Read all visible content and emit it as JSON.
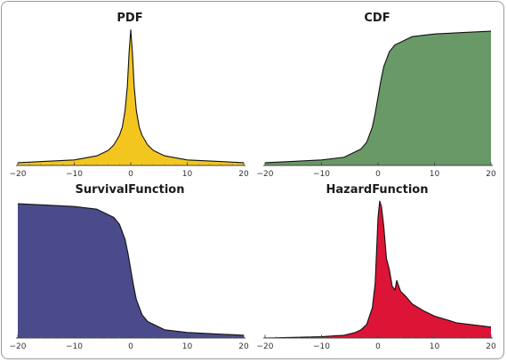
{
  "chart_data": [
    {
      "type": "area",
      "title": "PDF",
      "fill": "#f2c61f",
      "xlim": [
        -20,
        20
      ],
      "ylim": [
        0,
        1
      ],
      "xticks": [
        -20,
        -10,
        0,
        10,
        20
      ],
      "x": [
        -20,
        -10,
        -6,
        -4,
        -3,
        -2,
        -1.5,
        -1,
        -0.6,
        -0.3,
        0,
        0.3,
        0.6,
        1,
        1.5,
        2,
        3,
        4,
        6,
        10,
        20
      ],
      "y": [
        0.02,
        0.04,
        0.07,
        0.11,
        0.15,
        0.22,
        0.28,
        0.4,
        0.58,
        0.82,
        0.99,
        0.82,
        0.58,
        0.4,
        0.28,
        0.22,
        0.15,
        0.11,
        0.07,
        0.04,
        0.02
      ]
    },
    {
      "type": "area",
      "title": "CDF",
      "fill": "#689966",
      "xlim": [
        -20,
        20
      ],
      "ylim": [
        0,
        1
      ],
      "xticks": [
        -20,
        -10,
        0,
        10,
        20
      ],
      "x": [
        -20,
        -15,
        -10,
        -6,
        -3,
        -2,
        -1,
        -0.5,
        0,
        0.5,
        1,
        2,
        3,
        6,
        10,
        15,
        20
      ],
      "y": [
        0.02,
        0.03,
        0.04,
        0.06,
        0.12,
        0.17,
        0.28,
        0.38,
        0.5,
        0.62,
        0.72,
        0.83,
        0.88,
        0.94,
        0.96,
        0.97,
        0.98
      ]
    },
    {
      "type": "area",
      "title": "SurvivalFunction",
      "fill": "#4b4b8b",
      "xlim": [
        -20,
        20
      ],
      "ylim": [
        0,
        1
      ],
      "xticks": [
        -20,
        -10,
        0,
        10,
        20
      ],
      "x": [
        -20,
        -15,
        -10,
        -6,
        -3,
        -2,
        -1,
        -0.5,
        0,
        0.5,
        1,
        2,
        3,
        6,
        10,
        15,
        20
      ],
      "y": [
        0.98,
        0.97,
        0.96,
        0.94,
        0.88,
        0.83,
        0.72,
        0.62,
        0.5,
        0.38,
        0.28,
        0.17,
        0.12,
        0.06,
        0.04,
        0.03,
        0.02
      ]
    },
    {
      "type": "area",
      "title": "HazardFunction",
      "fill": "#dc1436",
      "xlim": [
        -20,
        20
      ],
      "ylim": [
        0,
        1
      ],
      "xticks": [
        -20,
        -10,
        0,
        10,
        20
      ],
      "x": [
        -20,
        -10,
        -6,
        -4,
        -3,
        -2,
        -1,
        -0.5,
        0,
        0.3,
        0.6,
        1,
        1.5,
        2,
        2.5,
        3,
        3.3,
        4,
        5,
        6,
        8,
        10,
        14,
        20
      ],
      "y": [
        0,
        0.01,
        0.02,
        0.04,
        0.06,
        0.1,
        0.22,
        0.4,
        0.88,
        1.0,
        0.96,
        0.82,
        0.58,
        0.5,
        0.38,
        0.35,
        0.42,
        0.34,
        0.3,
        0.25,
        0.2,
        0.16,
        0.11,
        0.08
      ]
    }
  ]
}
